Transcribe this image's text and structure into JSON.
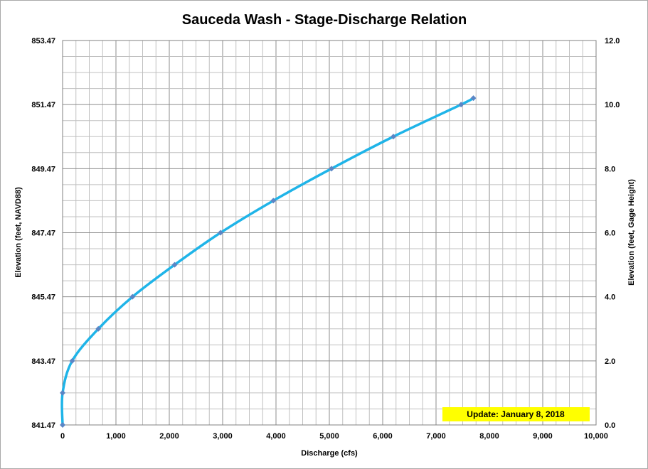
{
  "chart_data": {
    "type": "line",
    "title": "Sauceda Wash - Stage-Discharge Relation",
    "xlabel": "Discharge (cfs)",
    "ylabel": "Elevation (feet, NAVD88)",
    "y2label": "Elevation (feet, Gage Height)",
    "xlim": [
      0,
      10000
    ],
    "ylim": [
      841.47,
      853.47
    ],
    "y2lim": [
      0.0,
      12.0
    ],
    "x_tick_labels": [
      "0",
      "1,000",
      "2,000",
      "3,000",
      "4,000",
      "5,000",
      "6,000",
      "7,000",
      "8,000",
      "9,000",
      "10,000"
    ],
    "y_tick_labels": [
      "841.47",
      "843.47",
      "845.47",
      "847.47",
      "849.47",
      "851.47",
      "853.47"
    ],
    "y2_tick_labels": [
      "0.0",
      "2.0",
      "4.0",
      "6.0",
      "8.0",
      "10.0",
      "12.0"
    ],
    "grid": true,
    "series": [
      {
        "x": [
          0,
          0,
          180,
          670,
          1310,
          2100,
          2960,
          3950,
          5040,
          6200,
          7470,
          7700
        ],
        "y": [
          841.47,
          842.47,
          843.47,
          844.47,
          845.47,
          846.47,
          847.47,
          848.47,
          849.47,
          850.47,
          851.47,
          851.67
        ],
        "color": "#1fb4e8",
        "marker_color": "#5b86c5"
      }
    ],
    "annotation": "Update: January 8, 2018",
    "annotation_color": "#ffff00"
  }
}
